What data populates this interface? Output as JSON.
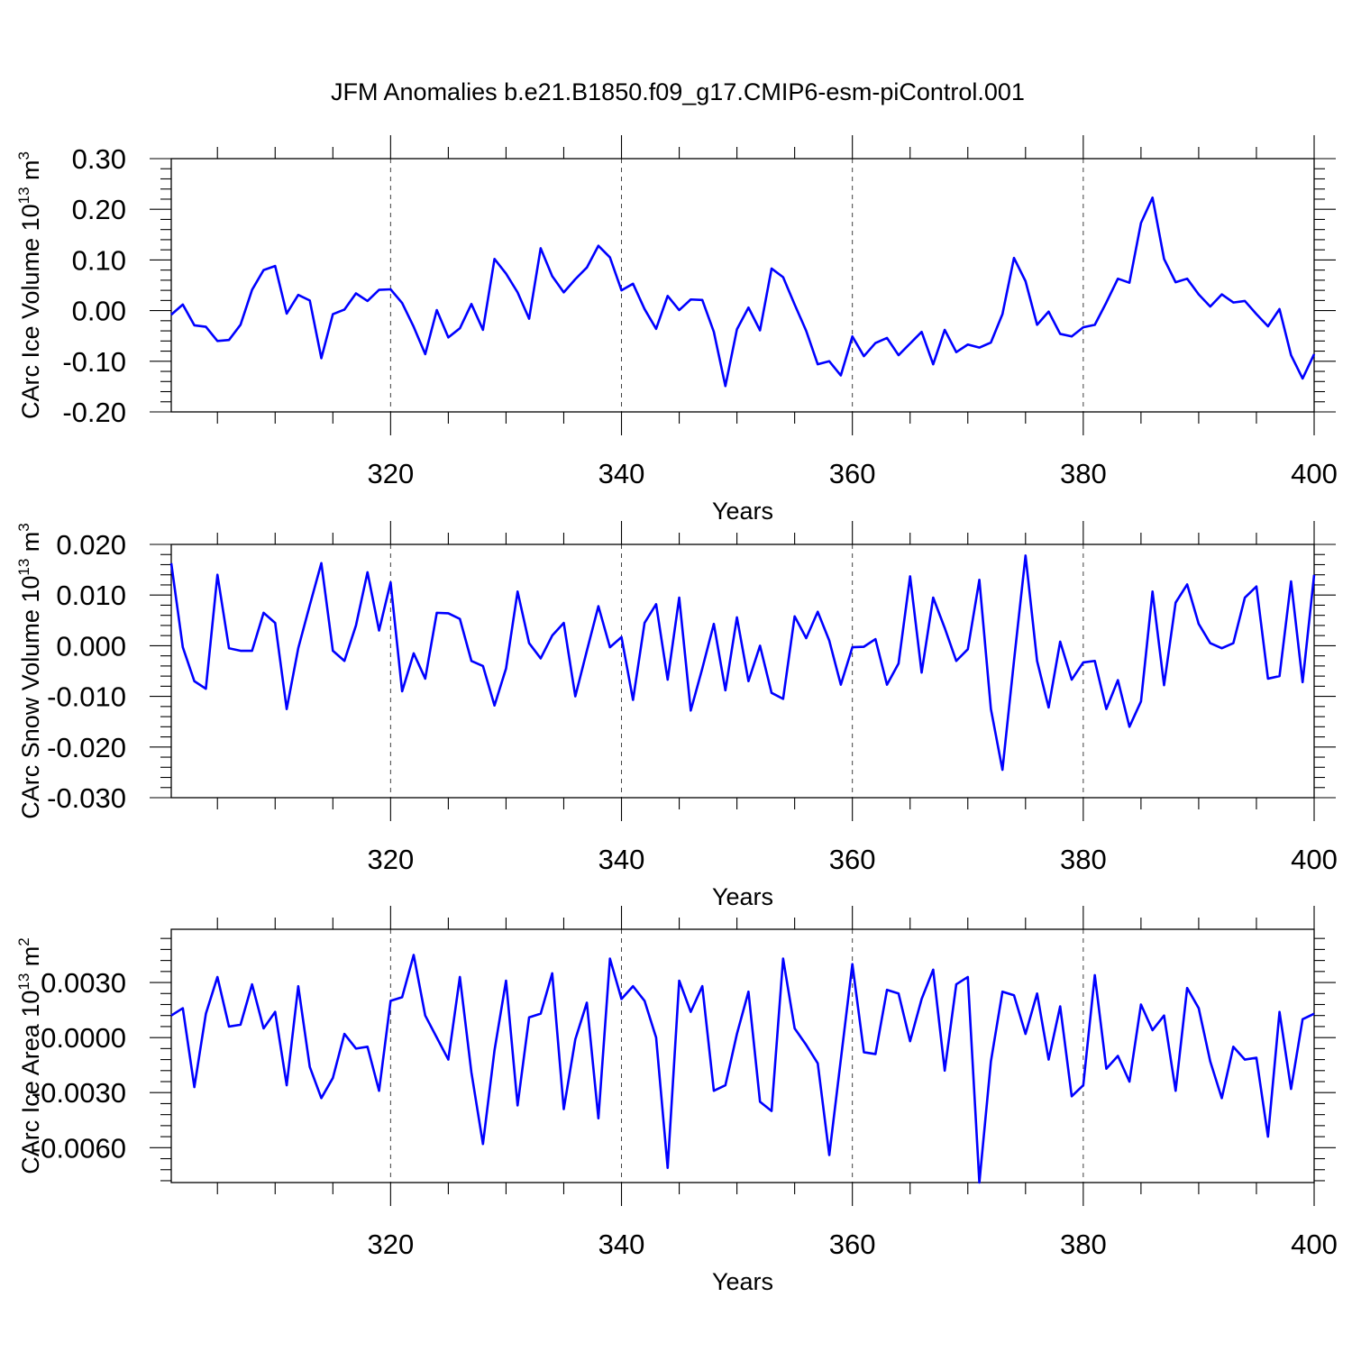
{
  "page": {
    "title": "JFM Anomalies b.e21.B1850.f09_g17.CMIP6-esm-piControl.001"
  },
  "chart_data": [
    {
      "type": "line",
      "title": "JFM Anomalies b.e21.B1850.f09_g17.CMIP6-esm-piControl.001",
      "xlabel": "Years",
      "ylabel_main": "CArc Ice Volume 10",
      "ylabel_exp": "13",
      "ylabel_tail": " m",
      "ylabel_unit_exp": "3",
      "xlim": [
        301,
        400
      ],
      "ylim": [
        -0.2,
        0.3
      ],
      "x_ticks": [
        320,
        340,
        360,
        380,
        400
      ],
      "x_tick_labels": [
        "320",
        "340",
        "360",
        "380",
        "400"
      ],
      "y_ticks": [
        -0.2,
        -0.1,
        0.0,
        0.1,
        0.2,
        0.3
      ],
      "y_tick_labels": [
        "-0.20",
        "-0.10",
        "0.00",
        "0.10",
        "0.20",
        "0.30"
      ],
      "x_start": 301,
      "values": [
        -0.008,
        0.012,
        -0.029,
        -0.032,
        -0.06,
        -0.058,
        -0.028,
        0.041,
        0.08,
        0.088,
        -0.006,
        0.031,
        0.02,
        -0.094,
        -0.007,
        0.002,
        0.034,
        0.019,
        0.041,
        0.042,
        0.015,
        -0.032,
        -0.086,
        0.001,
        -0.053,
        -0.035,
        0.013,
        -0.038,
        0.102,
        0.073,
        0.036,
        -0.016,
        0.123,
        0.068,
        0.036,
        0.062,
        0.085,
        0.128,
        0.105,
        0.04,
        0.053,
        0.003,
        -0.036,
        0.029,
        0.001,
        0.022,
        0.021,
        -0.042,
        -0.149,
        -0.037,
        0.006,
        -0.039,
        0.083,
        0.066,
        0.012,
        -0.04,
        -0.106,
        -0.1,
        -0.128,
        -0.051,
        -0.09,
        -0.064,
        -0.054,
        -0.088,
        -0.065,
        -0.042,
        -0.106,
        -0.038,
        -0.082,
        -0.067,
        -0.073,
        -0.063,
        -0.007,
        0.104,
        0.058,
        -0.028,
        -0.002,
        -0.046,
        -0.051,
        -0.033,
        -0.028,
        0.016,
        0.063,
        0.055,
        0.173,
        0.223,
        0.102,
        0.056,
        0.063,
        0.032,
        0.008,
        0.032,
        0.016,
        0.019,
        -0.007,
        -0.031,
        0.003,
        -0.088,
        -0.134,
        -0.086
      ]
    },
    {
      "type": "line",
      "xlabel": "Years",
      "ylabel_main": "CArc Snow Volume 10",
      "ylabel_exp": "13",
      "ylabel_tail": " m",
      "ylabel_unit_exp": "3",
      "xlim": [
        301,
        400
      ],
      "ylim": [
        -0.03,
        0.02
      ],
      "x_ticks": [
        320,
        340,
        360,
        380,
        400
      ],
      "x_tick_labels": [
        "320",
        "340",
        "360",
        "380",
        "400"
      ],
      "y_ticks": [
        -0.03,
        -0.02,
        -0.01,
        0.0,
        0.01,
        0.02
      ],
      "y_tick_labels": [
        "-0.030",
        "-0.020",
        "-0.010",
        "0.000",
        "0.010",
        "0.020"
      ],
      "x_start": 301,
      "values": [
        0.0163,
        -0.0003,
        -0.007,
        -0.0085,
        0.014,
        -0.0005,
        -0.001,
        -0.001,
        0.0065,
        0.0045,
        -0.0125,
        -0.0005,
        0.008,
        0.0163,
        -0.001,
        -0.003,
        0.004,
        0.0145,
        0.003,
        0.0125,
        -0.009,
        -0.0015,
        -0.0065,
        0.0065,
        0.0064,
        0.0053,
        -0.003,
        -0.004,
        -0.0118,
        -0.0045,
        0.0107,
        0.0005,
        -0.0025,
        0.002,
        0.0045,
        -0.01,
        -0.001,
        0.0078,
        -0.0003,
        0.0017,
        -0.0107,
        0.0045,
        0.0082,
        -0.0067,
        0.0095,
        -0.0128,
        -0.0045,
        0.0043,
        -0.0088,
        0.0056,
        -0.007,
        0.0,
        -0.0093,
        -0.0105,
        0.0058,
        0.0015,
        0.0067,
        0.001,
        -0.0077,
        -0.0003,
        -0.0002,
        0.0013,
        -0.0077,
        -0.0035,
        0.0137,
        -0.0053,
        0.0095,
        0.0035,
        -0.003,
        -0.0007,
        0.013,
        -0.0125,
        -0.0245,
        -0.003,
        0.0178,
        -0.003,
        -0.0122,
        0.0008,
        -0.0067,
        -0.0033,
        -0.003,
        -0.0125,
        -0.0068,
        -0.016,
        -0.011,
        0.0107,
        -0.0078,
        0.0085,
        0.0121,
        0.0043,
        0.0005,
        -0.0005,
        0.0005,
        0.0095,
        0.0117,
        -0.0065,
        -0.006,
        0.0127,
        -0.0072,
        0.014
      ]
    },
    {
      "type": "line",
      "xlabel": "Years",
      "ylabel_main": "CArc Ice Area 10",
      "ylabel_exp": "13",
      "ylabel_tail": " m",
      "ylabel_unit_exp": "2",
      "xlim": [
        301,
        400
      ],
      "ylim": [
        -0.0079,
        0.0059
      ],
      "x_ticks": [
        320,
        340,
        360,
        380,
        400
      ],
      "x_tick_labels": [
        "320",
        "340",
        "360",
        "380",
        "400"
      ],
      "y_ticks": [
        -0.006,
        -0.003,
        0.0,
        0.003
      ],
      "y_tick_labels": [
        "-0.0060",
        "-0.0030",
        "0.0000",
        "0.0030"
      ],
      "x_start": 301,
      "values": [
        0.0012,
        0.0016,
        -0.0027,
        0.0013,
        0.0033,
        0.0006,
        0.0007,
        0.0029,
        0.0005,
        0.0014,
        -0.0026,
        0.0028,
        -0.0016,
        -0.0033,
        -0.0022,
        0.0002,
        -0.0006,
        -0.0005,
        -0.0029,
        0.002,
        0.0022,
        0.0045,
        0.0012,
        0.0,
        -0.0012,
        0.0033,
        -0.0019,
        -0.0058,
        -0.0007,
        0.0031,
        -0.0037,
        0.0011,
        0.0013,
        0.0035,
        -0.0039,
        -0.0001,
        0.0019,
        -0.0044,
        0.0043,
        0.0021,
        0.0028,
        0.002,
        0.0,
        -0.0071,
        0.0031,
        0.0014,
        0.0028,
        -0.0029,
        -0.0026,
        0.0002,
        0.0025,
        -0.0035,
        -0.004,
        0.0043,
        0.0005,
        -0.0004,
        -0.0014,
        -0.0064,
        -0.0012,
        0.004,
        -0.0008,
        -0.0009,
        0.0026,
        0.0024,
        -0.0002,
        0.0021,
        0.0037,
        -0.0018,
        0.0029,
        0.0033,
        -0.0079,
        -0.0013,
        0.0025,
        0.0023,
        0.0002,
        0.0024,
        -0.0012,
        0.0017,
        -0.0032,
        -0.0026,
        0.0034,
        -0.0017,
        -0.001,
        -0.0024,
        0.0018,
        0.0004,
        0.0012,
        -0.0029,
        0.0027,
        0.0016,
        -0.0013,
        -0.0033,
        -0.0005,
        -0.0012,
        -0.0011,
        -0.0054,
        0.0014,
        -0.0028,
        0.001,
        0.0013
      ]
    }
  ]
}
